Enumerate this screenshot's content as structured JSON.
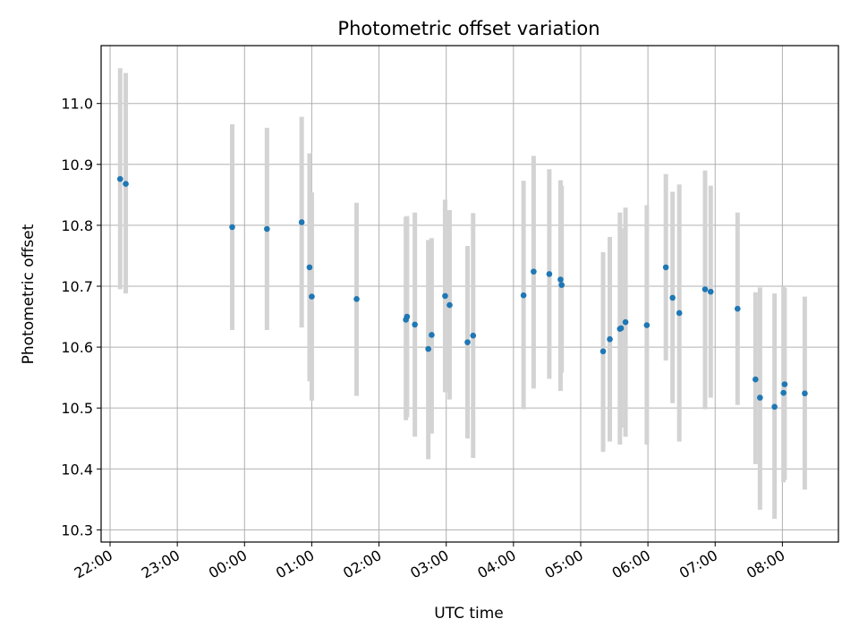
{
  "chart_data": {
    "type": "scatter",
    "title": "Photometric offset variation",
    "xlabel": "UTC time",
    "ylabel": "Photometric offset",
    "x_axis_kind": "time (hours, spanning midnight)",
    "xlim": [
      "21:52",
      "08:50"
    ],
    "ylim": [
      10.28,
      11.095
    ],
    "grid": true,
    "x_ticks": [
      "22:00",
      "23:00",
      "00:00",
      "01:00",
      "02:00",
      "03:00",
      "04:00",
      "05:00",
      "06:00",
      "07:00",
      "08:00"
    ],
    "y_ticks": [
      "10.3",
      "10.4",
      "10.5",
      "10.6",
      "10.7",
      "10.8",
      "10.9",
      "11.0"
    ],
    "colors": {
      "point": "#1f77b4",
      "errorbar": "#d3d3d3",
      "grid": "#b0b0b0"
    },
    "series": [
      {
        "points": [
          {
            "x": "22:09",
            "y": 10.876,
            "ylo": 10.695,
            "yhi": 11.058
          },
          {
            "x": "22:14",
            "y": 10.868,
            "ylo": 10.688,
            "yhi": 11.05
          },
          {
            "x": "23:49",
            "y": 10.797,
            "ylo": 10.628,
            "yhi": 10.966
          },
          {
            "x": "00:20",
            "y": 10.794,
            "ylo": 10.628,
            "yhi": 10.96
          },
          {
            "x": "00:51",
            "y": 10.805,
            "ylo": 10.632,
            "yhi": 10.978
          },
          {
            "x": "00:58",
            "y": 10.731,
            "ylo": 10.544,
            "yhi": 10.918
          },
          {
            "x": "01:00",
            "y": 10.683,
            "ylo": 10.512,
            "yhi": 10.854
          },
          {
            "x": "01:40",
            "y": 10.679,
            "ylo": 10.52,
            "yhi": 10.837
          },
          {
            "x": "02:24",
            "y": 10.645,
            "ylo": 10.48,
            "yhi": 10.814
          },
          {
            "x": "02:25",
            "y": 10.65,
            "ylo": 10.485,
            "yhi": 10.815
          },
          {
            "x": "02:32",
            "y": 10.637,
            "ylo": 10.453,
            "yhi": 10.821
          },
          {
            "x": "02:44",
            "y": 10.597,
            "ylo": 10.416,
            "yhi": 10.776
          },
          {
            "x": "02:47",
            "y": 10.62,
            "ylo": 10.458,
            "yhi": 10.779
          },
          {
            "x": "02:59",
            "y": 10.684,
            "ylo": 10.526,
            "yhi": 10.842
          },
          {
            "x": "03:03",
            "y": 10.669,
            "ylo": 10.514,
            "yhi": 10.825
          },
          {
            "x": "03:19",
            "y": 10.608,
            "ylo": 10.45,
            "yhi": 10.766
          },
          {
            "x": "03:24",
            "y": 10.619,
            "ylo": 10.418,
            "yhi": 10.82
          },
          {
            "x": "04:09",
            "y": 10.685,
            "ylo": 10.498,
            "yhi": 10.873
          },
          {
            "x": "04:18",
            "y": 10.724,
            "ylo": 10.532,
            "yhi": 10.914
          },
          {
            "x": "04:32",
            "y": 10.72,
            "ylo": 10.548,
            "yhi": 10.892
          },
          {
            "x": "04:42",
            "y": 10.711,
            "ylo": 10.528,
            "yhi": 10.874
          },
          {
            "x": "04:43",
            "y": 10.702,
            "ylo": 10.558,
            "yhi": 10.865
          },
          {
            "x": "05:20",
            "y": 10.593,
            "ylo": 10.428,
            "yhi": 10.756
          },
          {
            "x": "05:26",
            "y": 10.613,
            "ylo": 10.445,
            "yhi": 10.781
          },
          {
            "x": "05:35",
            "y": 10.63,
            "ylo": 10.44,
            "yhi": 10.821
          },
          {
            "x": "05:36",
            "y": 10.631,
            "ylo": 10.468,
            "yhi": 10.795
          },
          {
            "x": "05:40",
            "y": 10.641,
            "ylo": 10.453,
            "yhi": 10.829
          },
          {
            "x": "05:59",
            "y": 10.636,
            "ylo": 10.44,
            "yhi": 10.833
          },
          {
            "x": "06:16",
            "y": 10.731,
            "ylo": 10.578,
            "yhi": 10.884
          },
          {
            "x": "06:22",
            "y": 10.681,
            "ylo": 10.508,
            "yhi": 10.855
          },
          {
            "x": "06:28",
            "y": 10.656,
            "ylo": 10.445,
            "yhi": 10.867
          },
          {
            "x": "06:51",
            "y": 10.695,
            "ylo": 10.498,
            "yhi": 10.89
          },
          {
            "x": "06:56",
            "y": 10.691,
            "ylo": 10.517,
            "yhi": 10.865
          },
          {
            "x": "07:20",
            "y": 10.663,
            "ylo": 10.505,
            "yhi": 10.821
          },
          {
            "x": "07:36",
            "y": 10.547,
            "ylo": 10.408,
            "yhi": 10.69
          },
          {
            "x": "07:40",
            "y": 10.517,
            "ylo": 10.333,
            "yhi": 10.698
          },
          {
            "x": "07:53",
            "y": 10.502,
            "ylo": 10.318,
            "yhi": 10.688
          },
          {
            "x": "08:01",
            "y": 10.525,
            "ylo": 10.378,
            "yhi": 10.7
          },
          {
            "x": "08:02",
            "y": 10.539,
            "ylo": 10.382,
            "yhi": 10.697
          },
          {
            "x": "08:20",
            "y": 10.524,
            "ylo": 10.366,
            "yhi": 10.683
          }
        ]
      }
    ]
  }
}
